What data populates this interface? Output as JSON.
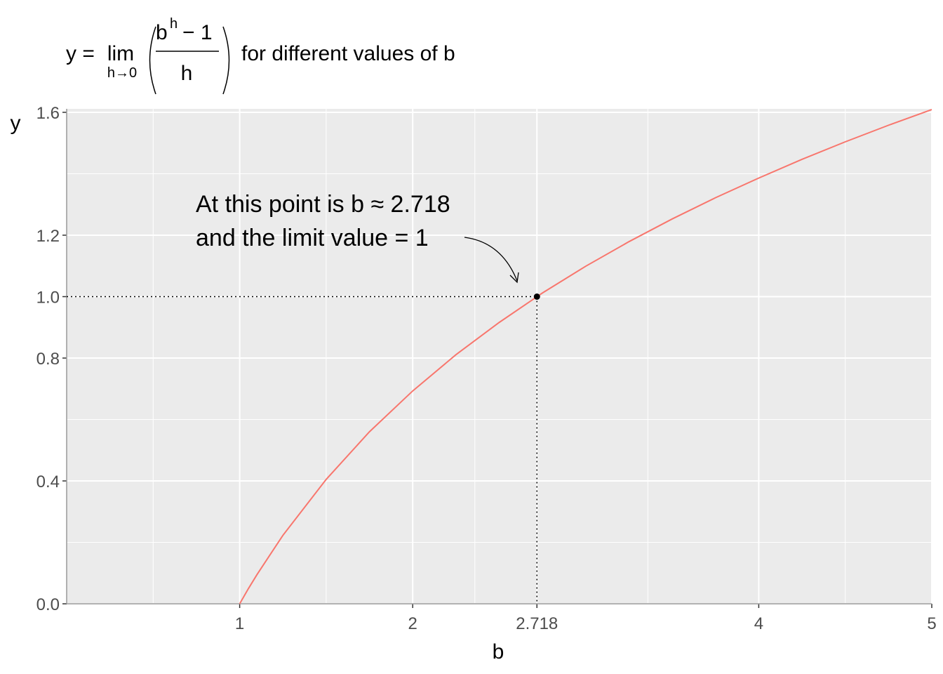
{
  "chart_data": {
    "type": "line",
    "title": {
      "lhs": "y =",
      "operator": "lim",
      "subscript": "h→0",
      "numerator_base": "b",
      "numerator_exponent": "h",
      "numerator_rest": "− 1",
      "denominator": "h",
      "text": "for different values of b"
    },
    "x_label": "b",
    "y_label": "y",
    "x": [
      1,
      1.05,
      1.1,
      1.25,
      1.5,
      1.75,
      2,
      2.25,
      2.5,
      2.75,
      3,
      3.25,
      3.5,
      3.75,
      4,
      4.25,
      4.5,
      4.75,
      5
    ],
    "series": [
      {
        "color": "#F8766D",
        "values": [
          0,
          0.049,
          0.095,
          0.223,
          0.405,
          0.56,
          0.693,
          0.811,
          0.916,
          1.012,
          1.099,
          1.179,
          1.253,
          1.322,
          1.386,
          1.447,
          1.504,
          1.558,
          1.609
        ]
      }
    ],
    "highlight": {
      "x": 2.718,
      "y": 1
    },
    "annotation": [
      "At this point is b ≈ 2.718",
      "and the limit value = 1"
    ],
    "xlim": [
      0,
      5
    ],
    "ylim": [
      0,
      1.6
    ],
    "xticks": [
      1,
      2,
      2.718,
      4,
      5
    ],
    "yticks": [
      {
        "value": 0,
        "label": "0.0"
      },
      0.4,
      0.8,
      {
        "value": 1,
        "label": "1.0"
      },
      1.2,
      1.6
    ],
    "x_minor_ticks": [
      0.5,
      1.5,
      2.359,
      3.359,
      4.5
    ],
    "y_minor_ticks": [
      0.2,
      0.6,
      1.4
    ],
    "grid": true
  }
}
